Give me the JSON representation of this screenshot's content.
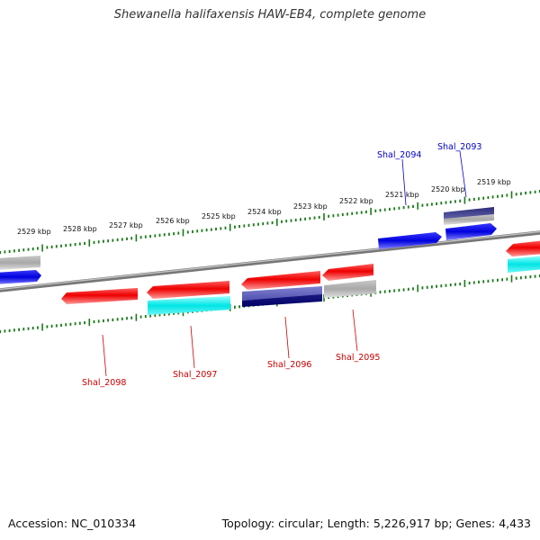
{
  "title": "Shewanella halifaxensis HAW-EB4, complete genome",
  "footer": {
    "accession": "Accession: NC_010334",
    "summary": "Topology: circular; Length: 5,226,917 bp; Genes: 4,433"
  },
  "scale_labels": [
    "2529 kbp",
    "2528 kbp",
    "2527 kbp",
    "2526 kbp",
    "2525 kbp",
    "2524 kbp",
    "2523 kbp",
    "2522 kbp",
    "2521 kbp",
    "2520 kbp",
    "2519 kbp"
  ],
  "gene_labels": [
    {
      "text": "Shal_2094",
      "color": "#0000cc"
    },
    {
      "text": "Shal_2093",
      "color": "#0000cc"
    },
    {
      "text": "Shal_2098",
      "color": "#cc0000"
    },
    {
      "text": "Shal_2097",
      "color": "#cc0000"
    },
    {
      "text": "Shal_2096",
      "color": "#cc0000"
    },
    {
      "text": "Shal_2095",
      "color": "#cc0000"
    }
  ],
  "colors": {
    "tick_green": "#1a7a1a",
    "backbone": "#888888",
    "forward_cds": "#0000ee",
    "reverse_cds": "#ee0000",
    "cyan_feature": "#00e5e5",
    "gray_feature": "#aaaaaa",
    "navy_feature": "#1a1a80"
  }
}
